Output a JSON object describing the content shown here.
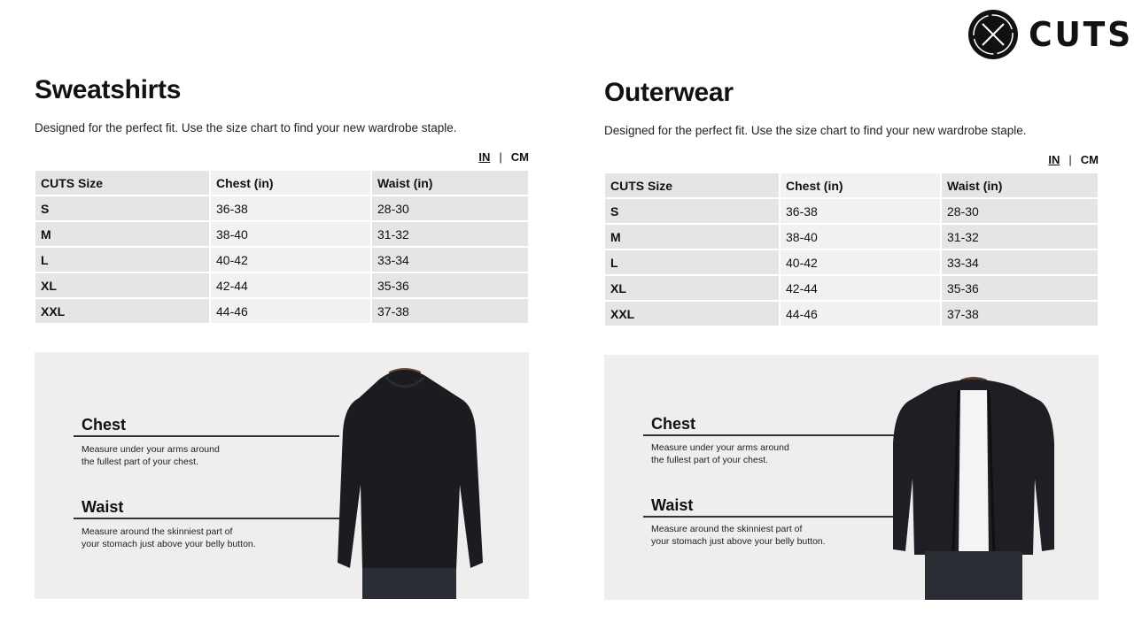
{
  "brand": {
    "name": "CUTS"
  },
  "sections": [
    {
      "title": "Sweatshirts",
      "subtitle": "Designed for the perfect fit. Use the size chart to find your new wardrobe staple.",
      "units": {
        "in": "IN",
        "separator": "|",
        "cm": "CM"
      },
      "headers": [
        "CUTS Size",
        "Chest (in)",
        "Waist (in)"
      ],
      "rows": [
        [
          "S",
          "36-38",
          "28-30"
        ],
        [
          "M",
          "38-40",
          "31-32"
        ],
        [
          "L",
          "40-42",
          "33-34"
        ],
        [
          "XL",
          "42-44",
          "35-36"
        ],
        [
          "XXL",
          "44-46",
          "37-38"
        ]
      ],
      "guide": {
        "chest_title": "Chest",
        "chest_desc_1": "Measure under your arms around",
        "chest_desc_2": "the fullest part of your chest.",
        "waist_title": "Waist",
        "waist_desc_1": "Measure around the skinniest part of",
        "waist_desc_2": "your stomach just above your belly button."
      }
    },
    {
      "title": "Outerwear",
      "subtitle": "Designed for the perfect fit. Use the size chart to find your new wardrobe staple.",
      "units": {
        "in": "IN",
        "separator": "|",
        "cm": "CM"
      },
      "headers": [
        "CUTS Size",
        "Chest (in)",
        "Waist (in)"
      ],
      "rows": [
        [
          "S",
          "36-38",
          "28-30"
        ],
        [
          "M",
          "38-40",
          "31-32"
        ],
        [
          "L",
          "40-42",
          "33-34"
        ],
        [
          "XL",
          "42-44",
          "35-36"
        ],
        [
          "XXL",
          "44-46",
          "37-38"
        ]
      ],
      "guide": {
        "chest_title": "Chest",
        "chest_desc_1": "Measure under your arms around",
        "chest_desc_2": "the fullest part of your chest.",
        "waist_title": "Waist",
        "waist_desc_1": "Measure around the skinniest part of",
        "waist_desc_2": "your stomach just above your belly button."
      }
    }
  ]
}
